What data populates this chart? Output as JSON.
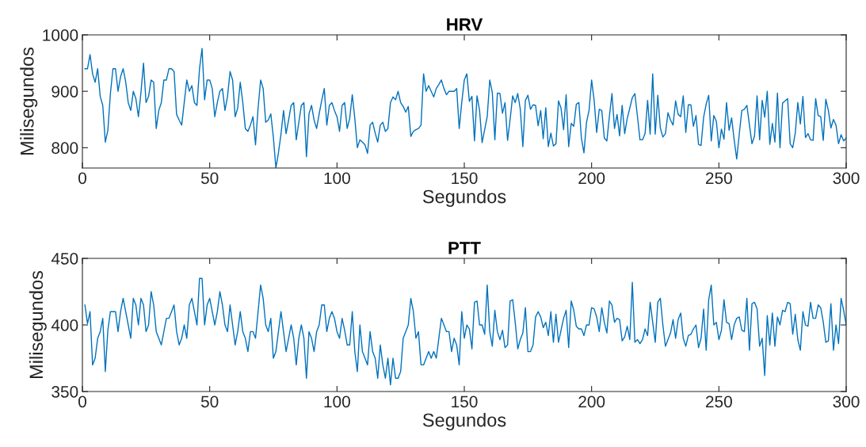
{
  "chart_data": [
    {
      "type": "line",
      "title": "HRV",
      "xlabel": "Segundos",
      "ylabel": "Milisegundos",
      "color": "#0072bd",
      "xlim": [
        0,
        300
      ],
      "ylim": [
        764,
        1000
      ],
      "xticks": [
        0,
        50,
        100,
        150,
        200,
        250,
        300
      ],
      "yticks": [
        800,
        900,
        1000
      ],
      "x": [
        1,
        2,
        3,
        4,
        5,
        6,
        7,
        8,
        9,
        10,
        11,
        12,
        13,
        14,
        15,
        16,
        17,
        18,
        19,
        20,
        21,
        22,
        23,
        24,
        25,
        26,
        27,
        28,
        29,
        30,
        31,
        32,
        33,
        34,
        35,
        36,
        37,
        38,
        39,
        40,
        41,
        42,
        43,
        44,
        45,
        46,
        47,
        48,
        49,
        50,
        51,
        52,
        53,
        54,
        55,
        56,
        57,
        58,
        59,
        60,
        61,
        62,
        63,
        64,
        65,
        66,
        67,
        68,
        69,
        70,
        71,
        72,
        73,
        74,
        75,
        76,
        77,
        78,
        79,
        80,
        81,
        82,
        83,
        84,
        85,
        86,
        87,
        88,
        89,
        90,
        91,
        92,
        93,
        94,
        95,
        96,
        97,
        98,
        99,
        100,
        101,
        102,
        103,
        104,
        105,
        106,
        107,
        108,
        109,
        110,
        111,
        112,
        113,
        114,
        115,
        116,
        117,
        118,
        119,
        120,
        121,
        122,
        123,
        124,
        125,
        126,
        127,
        128,
        129,
        130,
        131,
        132,
        133,
        134,
        135,
        136,
        137,
        138,
        139,
        140,
        141,
        142,
        143,
        144,
        145,
        146,
        147,
        148,
        149,
        150,
        151,
        152,
        153,
        154,
        155,
        156,
        157,
        158,
        159,
        160,
        161,
        162,
        163,
        164,
        165,
        166,
        167,
        168,
        169,
        170,
        171,
        172,
        173,
        174,
        175,
        176,
        177,
        178,
        179,
        180,
        181,
        182,
        183,
        184,
        185,
        186,
        187,
        188,
        189,
        190,
        191,
        192,
        193,
        194,
        195,
        196,
        197,
        198,
        199,
        200,
        201,
        202,
        203,
        204,
        205,
        206,
        207,
        208,
        209,
        210,
        211,
        212,
        213,
        214,
        215,
        216,
        217,
        218,
        219,
        220,
        221,
        222,
        223,
        224,
        225,
        226,
        227,
        228,
        229,
        230,
        231,
        232,
        233,
        234,
        235,
        236,
        237,
        238,
        239,
        240,
        241,
        242,
        243,
        244,
        245,
        246,
        247,
        248,
        249,
        250,
        251,
        252,
        253,
        254,
        255,
        256,
        257,
        258,
        259,
        260,
        261,
        262,
        263,
        264,
        265,
        266,
        267,
        268,
        269,
        270,
        271,
        272,
        273,
        274,
        275,
        276,
        277,
        278,
        279,
        280,
        281,
        282,
        283,
        284,
        285,
        286,
        287,
        288,
        289,
        290,
        291,
        292,
        293,
        294,
        295,
        296,
        297,
        298,
        299,
        300
      ],
      "values": [
        940,
        940,
        965,
        931,
        916,
        940,
        891,
        875,
        810,
        831,
        896,
        940,
        940,
        900,
        926,
        940,
        917,
        880,
        866,
        900,
        887,
        855,
        898,
        950,
        880,
        891,
        920,
        916,
        834,
        866,
        880,
        920,
        920,
        940,
        940,
        935,
        859,
        849,
        840,
        880,
        920,
        900,
        910,
        880,
        875,
        940,
        976,
        885,
        920,
        920,
        905,
        855,
        880,
        900,
        905,
        866,
        891,
        935,
        920,
        855,
        870,
        916,
        880,
        834,
        829,
        840,
        855,
        805,
        870,
        920,
        905,
        845,
        849,
        860,
        819,
        764,
        791,
        824,
        866,
        825,
        849,
        875,
        880,
        814,
        845,
        875,
        880,
        784,
        860,
        875,
        849,
        834,
        860,
        884,
        905,
        840,
        875,
        880,
        866,
        855,
        829,
        875,
        880,
        834,
        852,
        894,
        852,
        800,
        814,
        810,
        805,
        790,
        840,
        845,
        826,
        810,
        840,
        845,
        829,
        834,
        880,
        890,
        885,
        900,
        880,
        873,
        863,
        873,
        820,
        829,
        832,
        834,
        840,
        931,
        900,
        910,
        900,
        890,
        905,
        912,
        920,
        905,
        894,
        900,
        900,
        900,
        905,
        834,
        880,
        920,
        931,
        882,
        891,
        812,
        892,
        866,
        809,
        832,
        855,
        920,
        898,
        814,
        897,
        896,
        861,
        880,
        813,
        850,
        892,
        880,
        896,
        868,
        802,
        884,
        893,
        868,
        876,
        875,
        839,
        866,
        816,
        871,
        802,
        826,
        803,
        807,
        883,
        870,
        832,
        894,
        802,
        843,
        838,
        877,
        880,
        817,
        791,
        845,
        866,
        920,
        884,
        827,
        868,
        866,
        817,
        812,
        856,
        896,
        834,
        859,
        821,
        875,
        825,
        852,
        870,
        889,
        896,
        856,
        814,
        814,
        825,
        884,
        824,
        931,
        824,
        893,
        835,
        819,
        825,
        862,
        849,
        840,
        883,
        859,
        855,
        892,
        827,
        876,
        876,
        838,
        857,
        806,
        804,
        854,
        877,
        893,
        812,
        857,
        847,
        800,
        833,
        815,
        880,
        831,
        853,
        814,
        780,
        824,
        866,
        868,
        875,
        840,
        807,
        821,
        892,
        814,
        884,
        854,
        900,
        806,
        843,
        810,
        897,
        800,
        879,
        883,
        887,
        807,
        800,
        826,
        880,
        842,
        891,
        818,
        825,
        814,
        813,
        887,
        857,
        855,
        813,
        886,
        866,
        835,
        850,
        840,
        807,
        823,
        812,
        817
      ]
    },
    {
      "type": "line",
      "title": "PTT",
      "xlabel": "Segundos",
      "ylabel": "Milisegundos",
      "color": "#0072bd",
      "xlim": [
        0,
        300
      ],
      "ylim": [
        350,
        450
      ],
      "xticks": [
        0,
        50,
        100,
        150,
        200,
        250,
        300
      ],
      "yticks": [
        350,
        400,
        450
      ],
      "x": [
        1,
        2,
        3,
        4,
        5,
        6,
        7,
        8,
        9,
        10,
        11,
        12,
        13,
        14,
        15,
        16,
        17,
        18,
        19,
        20,
        21,
        22,
        23,
        24,
        25,
        26,
        27,
        28,
        29,
        30,
        31,
        32,
        33,
        34,
        35,
        36,
        37,
        38,
        39,
        40,
        41,
        42,
        43,
        44,
        45,
        46,
        47,
        48,
        49,
        50,
        51,
        52,
        53,
        54,
        55,
        56,
        57,
        58,
        59,
        60,
        61,
        62,
        63,
        64,
        65,
        66,
        67,
        68,
        69,
        70,
        71,
        72,
        73,
        74,
        75,
        76,
        77,
        78,
        79,
        80,
        81,
        82,
        83,
        84,
        85,
        86,
        87,
        88,
        89,
        90,
        91,
        92,
        93,
        94,
        95,
        96,
        97,
        98,
        99,
        100,
        101,
        102,
        103,
        104,
        105,
        106,
        107,
        108,
        109,
        110,
        111,
        112,
        113,
        114,
        115,
        116,
        117,
        118,
        119,
        120,
        121,
        122,
        123,
        124,
        125,
        126,
        127,
        128,
        129,
        130,
        131,
        132,
        133,
        134,
        135,
        136,
        137,
        138,
        139,
        140,
        141,
        142,
        143,
        144,
        145,
        146,
        147,
        148,
        149,
        150,
        151,
        152,
        153,
        154,
        155,
        156,
        157,
        158,
        159,
        160,
        161,
        162,
        163,
        164,
        165,
        166,
        167,
        168,
        169,
        170,
        171,
        172,
        173,
        174,
        175,
        176,
        177,
        178,
        179,
        180,
        181,
        182,
        183,
        184,
        185,
        186,
        187,
        188,
        189,
        190,
        191,
        192,
        193,
        194,
        195,
        196,
        197,
        198,
        199,
        200,
        201,
        202,
        203,
        204,
        205,
        206,
        207,
        208,
        209,
        210,
        211,
        212,
        213,
        214,
        215,
        216,
        217,
        218,
        219,
        220,
        221,
        222,
        223,
        224,
        225,
        226,
        227,
        228,
        229,
        230,
        231,
        232,
        233,
        234,
        235,
        236,
        237,
        238,
        239,
        240,
        241,
        242,
        243,
        244,
        245,
        246,
        247,
        248,
        249,
        250,
        251,
        252,
        253,
        254,
        255,
        256,
        257,
        258,
        259,
        260,
        261,
        262,
        263,
        264,
        265,
        266,
        267,
        268,
        269,
        270,
        271,
        272,
        273,
        274,
        275,
        276,
        277,
        278,
        279,
        280,
        281,
        282,
        283,
        284,
        285,
        286,
        287,
        288,
        289,
        290,
        291,
        292,
        293,
        294,
        295,
        296,
        297,
        298,
        299,
        300
      ],
      "values": [
        415,
        401,
        410,
        370,
        375,
        390,
        395,
        405,
        365,
        396,
        410,
        410,
        410,
        395,
        410,
        420,
        410,
        400,
        390,
        420,
        415,
        400,
        420,
        415,
        395,
        400,
        425,
        415,
        395,
        390,
        385,
        395,
        405,
        405,
        410,
        415,
        395,
        385,
        390,
        400,
        390,
        415,
        420,
        410,
        400,
        435,
        435,
        400,
        415,
        420,
        410,
        400,
        410,
        425,
        415,
        400,
        395,
        415,
        400,
        385,
        395,
        410,
        395,
        390,
        380,
        395,
        395,
        390,
        410,
        430,
        420,
        400,
        395,
        405,
        375,
        380,
        395,
        410,
        395,
        380,
        390,
        400,
        390,
        370,
        390,
        400,
        390,
        360,
        395,
        390,
        380,
        395,
        400,
        415,
        415,
        395,
        405,
        410,
        405,
        395,
        390,
        405,
        396,
        385,
        385,
        410,
        380,
        365,
        400,
        380,
        375,
        370,
        395,
        380,
        375,
        360,
        385,
        370,
        360,
        375,
        355,
        375,
        360,
        360,
        365,
        390,
        395,
        400,
        420,
        410,
        390,
        395,
        370,
        370,
        375,
        380,
        375,
        380,
        375,
        390,
        405,
        400,
        395,
        395,
        380,
        390,
        385,
        370,
        410,
        390,
        400,
        397,
        382,
        417,
        418,
        400,
        400,
        393,
        430,
        395,
        384,
        411,
        395,
        389,
        396,
        383,
        385,
        418,
        419,
        402,
        382,
        389,
        394,
        413,
        380,
        380,
        385,
        406,
        410,
        406,
        398,
        402,
        392,
        410,
        387,
        408,
        387,
        396,
        405,
        411,
        383,
        418,
        411,
        399,
        397,
        397,
        392,
        400,
        400,
        413,
        412,
        406,
        395,
        413,
        402,
        394,
        418,
        415,
        402,
        405,
        404,
        388,
        391,
        399,
        389,
        432,
        387,
        389,
        386,
        389,
        397,
        392,
        417,
        402,
        387,
        417,
        420,
        400,
        384,
        389,
        394,
        404,
        390,
        404,
        409,
        390,
        384,
        392,
        393,
        397,
        400,
        383,
        390,
        412,
        381,
        419,
        430,
        400,
        402,
        389,
        396,
        419,
        402,
        401,
        389,
        400,
        405,
        406,
        396,
        395,
        420,
        381,
        416,
        417,
        412,
        384,
        390,
        362,
        407,
        385,
        409,
        384,
        406,
        400,
        411,
        410,
        417,
        416,
        393,
        408,
        389,
        381,
        410,
        400,
        399,
        417,
        405,
        405,
        415,
        413,
        402,
        387,
        388,
        416,
        381,
        400,
        386,
        420,
        411,
        400
      ]
    }
  ]
}
